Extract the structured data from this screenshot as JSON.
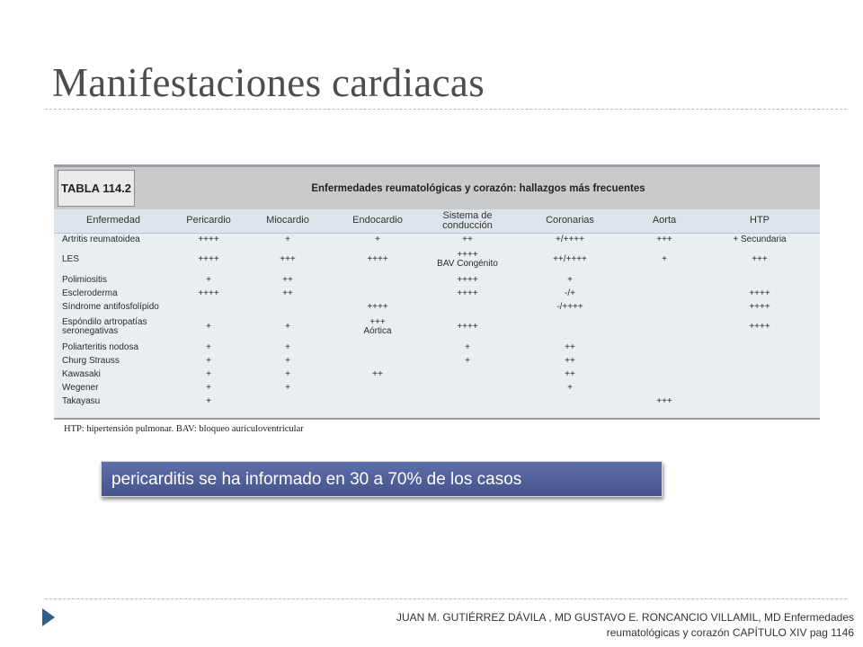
{
  "slide": {
    "title": "Manifestaciones cardiacas"
  },
  "table": {
    "label": "TABLA 114.2",
    "heading": "Enfermedades reumatológicas y corazón: hallazgos más frecuentes",
    "columns": [
      "Enfermedad",
      "Pericardio",
      "Miocardio",
      "Endocardio",
      "Sistema de\nconducción",
      "Coronarias",
      "Aorta",
      "HTP"
    ],
    "rows": [
      [
        "Artritis reumatoidea",
        "++++",
        "+",
        "+",
        "++",
        "+/++++",
        "+++",
        "+ Secundaria"
      ],
      [
        "LES",
        "++++",
        "+++",
        "++++",
        "++++\nBAV Congénito",
        "++/++++",
        "+",
        "+++"
      ],
      [
        "Polimiositis",
        "+",
        "++",
        "",
        "++++",
        "+",
        "",
        ""
      ],
      [
        "Escleroderma",
        "++++",
        "++",
        "",
        "++++",
        "-/+",
        "",
        "++++"
      ],
      [
        "Síndrome antifosfolípido",
        "",
        "",
        "++++",
        "",
        "-/++++",
        "",
        "++++"
      ],
      [
        "Espóndilo artropatías\nseronegativas",
        "+",
        "+",
        "+++\nAórtica",
        "++++",
        "",
        "",
        "++++"
      ],
      [
        "Poliarteritis nodosa",
        "+",
        "+",
        "",
        "+",
        "++",
        "",
        ""
      ],
      [
        "Churg Strauss",
        "+",
        "+",
        "",
        "+",
        "++",
        "",
        ""
      ],
      [
        "Kawasaki",
        "+",
        "+",
        "++",
        "",
        "++",
        "",
        ""
      ],
      [
        "Wegener",
        "+",
        "+",
        "",
        "",
        "+",
        "",
        ""
      ],
      [
        "Takayasu",
        "+",
        "",
        "",
        "",
        "",
        "+++",
        ""
      ]
    ],
    "footnote": "HTP: hipertensión pulmonar. BAV: bloqueo aurículoventricular"
  },
  "callout": {
    "text": "pericarditis se ha informado en 30 a 70% de los casos",
    "color": "#4f5d98"
  },
  "footer": {
    "bullet_icon": "triangle-bullet-icon",
    "citation_line1": "JUAN M. GUTIÉRREZ DÁVILA , MD GUSTAVO E. RONCANCIO VILLAMIL, MD Enfermedades",
    "citation_line2": "reumatológicas y corazón CAPÍTULO XIV pag 1146",
    "accent_color": "#2e5e8a"
  }
}
